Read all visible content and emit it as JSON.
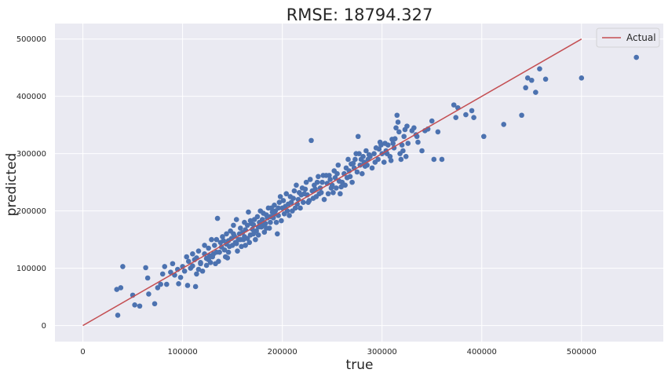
{
  "chart_data": {
    "type": "scatter",
    "title": "RMSE: 18794.327",
    "xlabel": "true",
    "ylabel": "predicted",
    "xlim": [
      -28000,
      582000
    ],
    "ylim": [
      -28000,
      527000
    ],
    "xticks": [
      0,
      100000,
      200000,
      300000,
      400000,
      500000
    ],
    "yticks": [
      0,
      100000,
      200000,
      300000,
      400000,
      500000
    ],
    "grid": true,
    "legend_position": "top-right",
    "legend": [
      "Actual"
    ],
    "colors": {
      "background": "#eaeaf2",
      "grid": "#ffffff",
      "points": "#4c72b0",
      "line": "#c44e52"
    },
    "line": {
      "name": "Actual",
      "x": [
        0,
        500000
      ],
      "y": [
        0,
        500000
      ]
    },
    "points": [
      [
        35000,
        18000
      ],
      [
        34000,
        63000
      ],
      [
        38000,
        66000
      ],
      [
        40000,
        103000
      ],
      [
        50000,
        53000
      ],
      [
        52000,
        36000
      ],
      [
        57000,
        34000
      ],
      [
        63000,
        101000
      ],
      [
        65000,
        83000
      ],
      [
        72000,
        38000
      ],
      [
        66000,
        55000
      ],
      [
        75000,
        66000
      ],
      [
        78000,
        72000
      ],
      [
        80000,
        90000
      ],
      [
        82000,
        103000
      ],
      [
        84000,
        72000
      ],
      [
        88000,
        93000
      ],
      [
        90000,
        108000
      ],
      [
        92000,
        88000
      ],
      [
        95000,
        98000
      ],
      [
        96000,
        73000
      ],
      [
        98000,
        84000
      ],
      [
        100000,
        103000
      ],
      [
        102000,
        95000
      ],
      [
        104000,
        120000
      ],
      [
        106000,
        112000
      ],
      [
        108000,
        100000
      ],
      [
        110000,
        125000
      ],
      [
        112000,
        115000
      ],
      [
        114000,
        90000
      ],
      [
        116000,
        130000
      ],
      [
        118000,
        110000
      ],
      [
        120000,
        95000
      ],
      [
        122000,
        125000
      ],
      [
        124000,
        117000
      ],
      [
        126000,
        135000
      ],
      [
        128000,
        110000
      ],
      [
        129000,
        150000
      ],
      [
        130000,
        120000
      ],
      [
        132000,
        140000
      ],
      [
        134000,
        128000
      ],
      [
        135000,
        187000
      ],
      [
        136000,
        112000
      ],
      [
        138000,
        145000
      ],
      [
        140000,
        155000
      ],
      [
        142000,
        132000
      ],
      [
        144000,
        160000
      ],
      [
        145000,
        118000
      ],
      [
        146000,
        148000
      ],
      [
        148000,
        165000
      ],
      [
        150000,
        140000
      ],
      [
        151000,
        175000
      ],
      [
        152000,
        156000
      ],
      [
        154000,
        185000
      ],
      [
        155000,
        130000
      ],
      [
        156000,
        150000
      ],
      [
        158000,
        170000
      ],
      [
        160000,
        162000
      ],
      [
        162000,
        180000
      ],
      [
        163000,
        140000
      ],
      [
        165000,
        175000
      ],
      [
        166000,
        198000
      ],
      [
        168000,
        158000
      ],
      [
        170000,
        168000
      ],
      [
        172000,
        185000
      ],
      [
        173000,
        150000
      ],
      [
        175000,
        190000
      ],
      [
        176000,
        172000
      ],
      [
        178000,
        200000
      ],
      [
        180000,
        185000
      ],
      [
        182000,
        163000
      ],
      [
        184000,
        193000
      ],
      [
        186000,
        205000
      ],
      [
        188000,
        180000
      ],
      [
        190000,
        198000
      ],
      [
        192000,
        210000
      ],
      [
        194000,
        180000
      ],
      [
        195000,
        160000
      ],
      [
        197000,
        215000
      ],
      [
        198000,
        225000
      ],
      [
        200000,
        205000
      ],
      [
        202000,
        195000
      ],
      [
        204000,
        230000
      ],
      [
        206000,
        212000
      ],
      [
        208000,
        225000
      ],
      [
        210000,
        200000
      ],
      [
        212000,
        235000
      ],
      [
        214000,
        245000
      ],
      [
        216000,
        220000
      ],
      [
        218000,
        205000
      ],
      [
        220000,
        240000
      ],
      [
        222000,
        230000
      ],
      [
        224000,
        250000
      ],
      [
        226000,
        215000
      ],
      [
        228000,
        255000
      ],
      [
        229000,
        323000
      ],
      [
        230000,
        235000
      ],
      [
        232000,
        245000
      ],
      [
        234000,
        225000
      ],
      [
        236000,
        260000
      ],
      [
        238000,
        240000
      ],
      [
        240000,
        250000
      ],
      [
        242000,
        220000
      ],
      [
        244000,
        262000
      ],
      [
        246000,
        230000
      ],
      [
        248000,
        255000
      ],
      [
        250000,
        245000
      ],
      [
        252000,
        270000
      ],
      [
        254000,
        240000
      ],
      [
        256000,
        280000
      ],
      [
        258000,
        230000
      ],
      [
        260000,
        250000
      ],
      [
        262000,
        265000
      ],
      [
        264000,
        275000
      ],
      [
        266000,
        290000
      ],
      [
        268000,
        260000
      ],
      [
        270000,
        250000
      ],
      [
        272000,
        275000
      ],
      [
        274000,
        300000
      ],
      [
        276000,
        330000
      ],
      [
        278000,
        280000
      ],
      [
        280000,
        265000
      ],
      [
        282000,
        285000
      ],
      [
        284000,
        305000
      ],
      [
        286000,
        290000
      ],
      [
        288000,
        295000
      ],
      [
        290000,
        275000
      ],
      [
        292000,
        300000
      ],
      [
        294000,
        310000
      ],
      [
        296000,
        290000
      ],
      [
        298000,
        320000
      ],
      [
        300000,
        300000
      ],
      [
        302000,
        285000
      ],
      [
        304000,
        305000
      ],
      [
        306000,
        315000
      ],
      [
        308000,
        295000
      ],
      [
        310000,
        325000
      ],
      [
        312000,
        310000
      ],
      [
        314000,
        345000
      ],
      [
        315000,
        367000
      ],
      [
        316000,
        355000
      ],
      [
        318000,
        300000
      ],
      [
        320000,
        315000
      ],
      [
        322000,
        330000
      ],
      [
        324000,
        295000
      ],
      [
        326000,
        318000
      ],
      [
        330000,
        340000
      ],
      [
        332000,
        345000
      ],
      [
        334000,
        333000
      ],
      [
        336000,
        320000
      ],
      [
        340000,
        305000
      ],
      [
        343000,
        340000
      ],
      [
        346000,
        343000
      ],
      [
        350000,
        357000
      ],
      [
        352000,
        290000
      ],
      [
        356000,
        338000
      ],
      [
        360000,
        290000
      ],
      [
        372000,
        385000
      ],
      [
        374000,
        363000
      ],
      [
        376000,
        380000
      ],
      [
        384000,
        368000
      ],
      [
        390000,
        375000
      ],
      [
        392000,
        363000
      ],
      [
        402000,
        330000
      ],
      [
        422000,
        351000
      ],
      [
        440000,
        367000
      ],
      [
        444000,
        415000
      ],
      [
        446000,
        432000
      ],
      [
        450000,
        428000
      ],
      [
        454000,
        407000
      ],
      [
        458000,
        448000
      ],
      [
        464000,
        430000
      ],
      [
        500000,
        432000
      ],
      [
        555000,
        468000
      ],
      [
        105000,
        70000
      ],
      [
        113000,
        68000
      ],
      [
        118000,
        108000
      ],
      [
        122000,
        140000
      ],
      [
        126000,
        115000
      ],
      [
        131000,
        125000
      ],
      [
        133000,
        108000
      ],
      [
        137000,
        128000
      ],
      [
        141000,
        148000
      ],
      [
        143000,
        120000
      ],
      [
        147000,
        138000
      ],
      [
        149000,
        152000
      ],
      [
        153000,
        145000
      ],
      [
        157000,
        160000
      ],
      [
        159000,
        138000
      ],
      [
        161000,
        150000
      ],
      [
        163000,
        167000
      ],
      [
        167000,
        145000
      ],
      [
        169000,
        178000
      ],
      [
        171000,
        160000
      ],
      [
        174000,
        165000
      ],
      [
        177000,
        180000
      ],
      [
        179000,
        172000
      ],
      [
        181000,
        196000
      ],
      [
        183000,
        178000
      ],
      [
        185000,
        188000
      ],
      [
        187000,
        170000
      ],
      [
        189000,
        205000
      ],
      [
        191000,
        188000
      ],
      [
        193000,
        200000
      ],
      [
        196000,
        192000
      ],
      [
        199000,
        183000
      ],
      [
        201000,
        218000
      ],
      [
        203000,
        208000
      ],
      [
        207000,
        192000
      ],
      [
        211000,
        222000
      ],
      [
        215000,
        212000
      ],
      [
        219000,
        228000
      ],
      [
        223000,
        238000
      ],
      [
        227000,
        218000
      ],
      [
        233000,
        238000
      ],
      [
        237000,
        230000
      ],
      [
        241000,
        262000
      ],
      [
        245000,
        248000
      ],
      [
        249000,
        240000
      ],
      [
        253000,
        258000
      ],
      [
        257000,
        252000
      ],
      [
        263000,
        245000
      ],
      [
        267000,
        270000
      ],
      [
        271000,
        283000
      ],
      [
        275000,
        268000
      ],
      [
        279000,
        290000
      ],
      [
        283000,
        278000
      ],
      [
        287000,
        298000
      ],
      [
        297000,
        308000
      ],
      [
        303000,
        318000
      ],
      [
        309000,
        288000
      ],
      [
        313000,
        326000
      ],
      [
        317000,
        338000
      ],
      [
        321000,
        305000
      ],
      [
        325000,
        348000
      ],
      [
        335000,
        330000
      ],
      [
        110000,
        104000
      ],
      [
        114000,
        118000
      ],
      [
        116000,
        98000
      ],
      [
        124000,
        105000
      ],
      [
        127000,
        122000
      ],
      [
        134000,
        150000
      ],
      [
        139000,
        137000
      ],
      [
        144000,
        142000
      ],
      [
        146000,
        128000
      ],
      [
        151000,
        160000
      ],
      [
        154000,
        143000
      ],
      [
        158000,
        150000
      ],
      [
        162000,
        155000
      ],
      [
        165000,
        152000
      ],
      [
        168000,
        183000
      ],
      [
        171000,
        176000
      ],
      [
        176000,
        158000
      ],
      [
        180000,
        175000
      ],
      [
        184000,
        170000
      ],
      [
        188000,
        190000
      ],
      [
        192000,
        195000
      ],
      [
        196000,
        205000
      ],
      [
        205000,
        200000
      ],
      [
        209000,
        215000
      ],
      [
        213000,
        205000
      ],
      [
        217000,
        232000
      ],
      [
        221000,
        215000
      ],
      [
        225000,
        228000
      ],
      [
        231000,
        222000
      ],
      [
        235000,
        250000
      ],
      [
        239000,
        232000
      ],
      [
        247000,
        262000
      ],
      [
        251000,
        232000
      ],
      [
        255000,
        265000
      ],
      [
        259000,
        242000
      ],
      [
        265000,
        258000
      ],
      [
        269000,
        282000
      ],
      [
        273000,
        290000
      ],
      [
        277000,
        300000
      ],
      [
        281000,
        295000
      ],
      [
        285000,
        280000
      ],
      [
        293000,
        285000
      ],
      [
        299000,
        315000
      ],
      [
        305000,
        300000
      ],
      [
        311000,
        318000
      ],
      [
        319000,
        290000
      ],
      [
        323000,
        342000
      ]
    ]
  }
}
